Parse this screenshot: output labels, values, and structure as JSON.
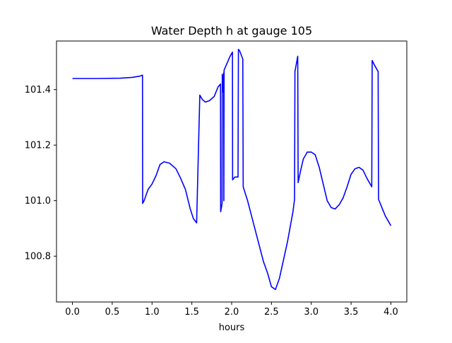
{
  "chart_data": {
    "type": "line",
    "title": "Water Depth h at gauge 105",
    "xlabel": "hours",
    "ylabel": "",
    "xlim": [
      -0.2,
      4.2
    ],
    "ylim": [
      100.635,
      101.575
    ],
    "xticks": [
      0.0,
      0.5,
      1.0,
      1.5,
      2.0,
      2.5,
      3.0,
      3.5,
      4.0
    ],
    "xtick_labels": [
      "0.0",
      "0.5",
      "1.0",
      "1.5",
      "2.0",
      "2.5",
      "3.0",
      "3.5",
      "4.0"
    ],
    "yticks": [
      100.8,
      101.0,
      101.2,
      101.4
    ],
    "ytick_labels": [
      "100.8",
      "101.0",
      "101.2",
      "101.4"
    ],
    "grid": false,
    "legend": "none",
    "series": [
      {
        "color": "#0000ff",
        "points": [
          [
            0.0,
            101.44
          ],
          [
            0.3,
            101.44
          ],
          [
            0.6,
            101.441
          ],
          [
            0.75,
            101.444
          ],
          [
            0.84,
            101.448
          ],
          [
            0.88,
            101.452
          ],
          [
            0.882,
            100.99
          ],
          [
            0.9,
            101.0
          ],
          [
            0.95,
            101.04
          ],
          [
            1.0,
            101.06
          ],
          [
            1.05,
            101.09
          ],
          [
            1.1,
            101.13
          ],
          [
            1.15,
            101.14
          ],
          [
            1.22,
            101.135
          ],
          [
            1.3,
            101.115
          ],
          [
            1.36,
            101.08
          ],
          [
            1.42,
            101.04
          ],
          [
            1.48,
            100.97
          ],
          [
            1.52,
            100.935
          ],
          [
            1.56,
            100.92
          ],
          [
            1.6,
            101.38
          ],
          [
            1.63,
            101.365
          ],
          [
            1.67,
            101.355
          ],
          [
            1.72,
            101.36
          ],
          [
            1.78,
            101.375
          ],
          [
            1.83,
            101.41
          ],
          [
            1.86,
            101.42
          ],
          [
            1.862,
            100.96
          ],
          [
            1.88,
            100.99
          ],
          [
            1.882,
            101.455
          ],
          [
            1.885,
            101.39
          ],
          [
            1.9,
            101.46
          ],
          [
            1.902,
            101.0
          ],
          [
            1.905,
            101.47
          ],
          [
            1.95,
            101.5
          ],
          [
            1.98,
            101.52
          ],
          [
            2.01,
            101.535
          ],
          [
            2.012,
            101.075
          ],
          [
            2.04,
            101.085
          ],
          [
            2.08,
            101.085
          ],
          [
            2.085,
            101.545
          ],
          [
            2.1,
            101.54
          ],
          [
            2.14,
            101.51
          ],
          [
            2.145,
            101.05
          ],
          [
            2.2,
            101.0
          ],
          [
            2.3,
            100.89
          ],
          [
            2.4,
            100.78
          ],
          [
            2.45,
            100.74
          ],
          [
            2.5,
            100.69
          ],
          [
            2.55,
            100.68
          ],
          [
            2.6,
            100.72
          ],
          [
            2.7,
            100.85
          ],
          [
            2.77,
            100.96
          ],
          [
            2.79,
            101.005
          ],
          [
            2.795,
            101.465
          ],
          [
            2.83,
            101.52
          ],
          [
            2.835,
            101.065
          ],
          [
            2.86,
            101.1
          ],
          [
            2.9,
            101.15
          ],
          [
            2.95,
            101.175
          ],
          [
            3.0,
            101.175
          ],
          [
            3.05,
            101.165
          ],
          [
            3.1,
            101.12
          ],
          [
            3.15,
            101.06
          ],
          [
            3.2,
            101.0
          ],
          [
            3.25,
            100.975
          ],
          [
            3.3,
            100.97
          ],
          [
            3.35,
            100.985
          ],
          [
            3.4,
            101.01
          ],
          [
            3.45,
            101.05
          ],
          [
            3.5,
            101.095
          ],
          [
            3.55,
            101.115
          ],
          [
            3.6,
            101.12
          ],
          [
            3.65,
            101.11
          ],
          [
            3.7,
            101.08
          ],
          [
            3.76,
            101.05
          ],
          [
            3.765,
            101.505
          ],
          [
            3.8,
            101.485
          ],
          [
            3.84,
            101.465
          ],
          [
            3.845,
            101.005
          ],
          [
            3.88,
            100.98
          ],
          [
            3.93,
            100.945
          ],
          [
            4.0,
            100.91
          ]
        ]
      }
    ]
  }
}
